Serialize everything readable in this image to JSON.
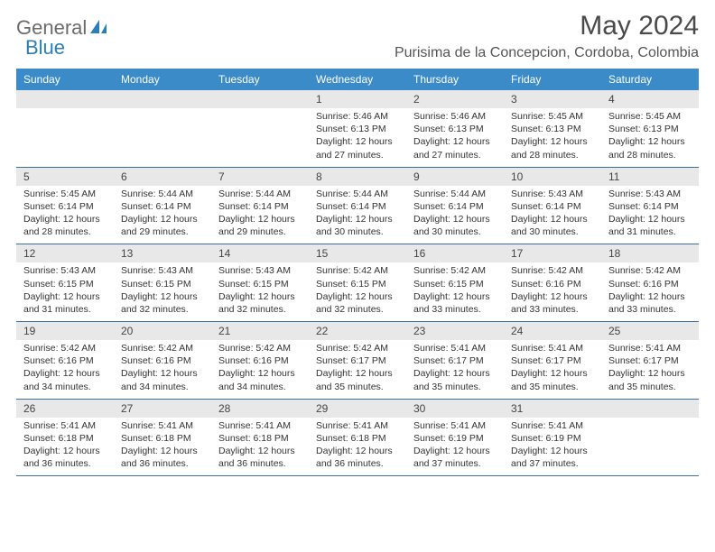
{
  "logo": {
    "text1": "General",
    "text2": "Blue"
  },
  "title": "May 2024",
  "location": "Purisima de la Concepcion, Cordoba, Colombia",
  "colors": {
    "header_bg": "#3b8bc8",
    "header_text": "#ffffff",
    "daynum_bg": "#e8e8e8",
    "border": "#3b6fa0",
    "title_color": "#4a4a4a",
    "logo_gray": "#6b6b6b",
    "logo_blue": "#2a7fba"
  },
  "daysOfWeek": [
    "Sunday",
    "Monday",
    "Tuesday",
    "Wednesday",
    "Thursday",
    "Friday",
    "Saturday"
  ],
  "weeks": [
    [
      null,
      null,
      null,
      {
        "num": "1",
        "sunrise": "5:46 AM",
        "sunset": "6:13 PM",
        "daylight": "12 hours and 27 minutes."
      },
      {
        "num": "2",
        "sunrise": "5:46 AM",
        "sunset": "6:13 PM",
        "daylight": "12 hours and 27 minutes."
      },
      {
        "num": "3",
        "sunrise": "5:45 AM",
        "sunset": "6:13 PM",
        "daylight": "12 hours and 28 minutes."
      },
      {
        "num": "4",
        "sunrise": "5:45 AM",
        "sunset": "6:13 PM",
        "daylight": "12 hours and 28 minutes."
      }
    ],
    [
      {
        "num": "5",
        "sunrise": "5:45 AM",
        "sunset": "6:14 PM",
        "daylight": "12 hours and 28 minutes."
      },
      {
        "num": "6",
        "sunrise": "5:44 AM",
        "sunset": "6:14 PM",
        "daylight": "12 hours and 29 minutes."
      },
      {
        "num": "7",
        "sunrise": "5:44 AM",
        "sunset": "6:14 PM",
        "daylight": "12 hours and 29 minutes."
      },
      {
        "num": "8",
        "sunrise": "5:44 AM",
        "sunset": "6:14 PM",
        "daylight": "12 hours and 30 minutes."
      },
      {
        "num": "9",
        "sunrise": "5:44 AM",
        "sunset": "6:14 PM",
        "daylight": "12 hours and 30 minutes."
      },
      {
        "num": "10",
        "sunrise": "5:43 AM",
        "sunset": "6:14 PM",
        "daylight": "12 hours and 30 minutes."
      },
      {
        "num": "11",
        "sunrise": "5:43 AM",
        "sunset": "6:14 PM",
        "daylight": "12 hours and 31 minutes."
      }
    ],
    [
      {
        "num": "12",
        "sunrise": "5:43 AM",
        "sunset": "6:15 PM",
        "daylight": "12 hours and 31 minutes."
      },
      {
        "num": "13",
        "sunrise": "5:43 AM",
        "sunset": "6:15 PM",
        "daylight": "12 hours and 32 minutes."
      },
      {
        "num": "14",
        "sunrise": "5:43 AM",
        "sunset": "6:15 PM",
        "daylight": "12 hours and 32 minutes."
      },
      {
        "num": "15",
        "sunrise": "5:42 AM",
        "sunset": "6:15 PM",
        "daylight": "12 hours and 32 minutes."
      },
      {
        "num": "16",
        "sunrise": "5:42 AM",
        "sunset": "6:15 PM",
        "daylight": "12 hours and 33 minutes."
      },
      {
        "num": "17",
        "sunrise": "5:42 AM",
        "sunset": "6:16 PM",
        "daylight": "12 hours and 33 minutes."
      },
      {
        "num": "18",
        "sunrise": "5:42 AM",
        "sunset": "6:16 PM",
        "daylight": "12 hours and 33 minutes."
      }
    ],
    [
      {
        "num": "19",
        "sunrise": "5:42 AM",
        "sunset": "6:16 PM",
        "daylight": "12 hours and 34 minutes."
      },
      {
        "num": "20",
        "sunrise": "5:42 AM",
        "sunset": "6:16 PM",
        "daylight": "12 hours and 34 minutes."
      },
      {
        "num": "21",
        "sunrise": "5:42 AM",
        "sunset": "6:16 PM",
        "daylight": "12 hours and 34 minutes."
      },
      {
        "num": "22",
        "sunrise": "5:42 AM",
        "sunset": "6:17 PM",
        "daylight": "12 hours and 35 minutes."
      },
      {
        "num": "23",
        "sunrise": "5:41 AM",
        "sunset": "6:17 PM",
        "daylight": "12 hours and 35 minutes."
      },
      {
        "num": "24",
        "sunrise": "5:41 AM",
        "sunset": "6:17 PM",
        "daylight": "12 hours and 35 minutes."
      },
      {
        "num": "25",
        "sunrise": "5:41 AM",
        "sunset": "6:17 PM",
        "daylight": "12 hours and 35 minutes."
      }
    ],
    [
      {
        "num": "26",
        "sunrise": "5:41 AM",
        "sunset": "6:18 PM",
        "daylight": "12 hours and 36 minutes."
      },
      {
        "num": "27",
        "sunrise": "5:41 AM",
        "sunset": "6:18 PM",
        "daylight": "12 hours and 36 minutes."
      },
      {
        "num": "28",
        "sunrise": "5:41 AM",
        "sunset": "6:18 PM",
        "daylight": "12 hours and 36 minutes."
      },
      {
        "num": "29",
        "sunrise": "5:41 AM",
        "sunset": "6:18 PM",
        "daylight": "12 hours and 36 minutes."
      },
      {
        "num": "30",
        "sunrise": "5:41 AM",
        "sunset": "6:19 PM",
        "daylight": "12 hours and 37 minutes."
      },
      {
        "num": "31",
        "sunrise": "5:41 AM",
        "sunset": "6:19 PM",
        "daylight": "12 hours and 37 minutes."
      },
      null
    ]
  ],
  "labels": {
    "sunrise": "Sunrise:",
    "sunset": "Sunset:",
    "daylight": "Daylight:"
  }
}
